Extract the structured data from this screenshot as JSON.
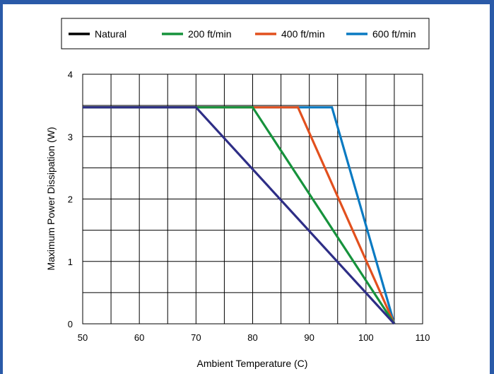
{
  "colors": {
    "frame": "#2a5aa8",
    "frame_dark": "#1d4489",
    "grid": "#000000",
    "background": "#ffffff"
  },
  "chart_data": {
    "type": "line",
    "xlabel": "Ambient Temperature (C)",
    "ylabel": "Maximum Power Dissipation (W)",
    "xlim": [
      50,
      110
    ],
    "ylim": [
      0,
      4
    ],
    "x_ticks": [
      50,
      60,
      70,
      80,
      90,
      100,
      110
    ],
    "y_ticks": [
      0,
      1,
      2,
      3,
      4
    ],
    "x_gridlines_every": 5,
    "y_gridlines_every": 0.5,
    "grid": true,
    "legend_position": "top",
    "series": [
      {
        "name": "Natural",
        "color": "#2e2e86",
        "points": [
          [
            50,
            3.47
          ],
          [
            70,
            3.47
          ],
          [
            105,
            0
          ]
        ]
      },
      {
        "name": "200 ft/min",
        "color": "#16923c",
        "points": [
          [
            50,
            3.47
          ],
          [
            80,
            3.47
          ],
          [
            105,
            0
          ]
        ]
      },
      {
        "name": "400 ft/min",
        "color": "#e2501e",
        "points": [
          [
            50,
            3.47
          ],
          [
            88,
            3.47
          ],
          [
            105,
            0
          ]
        ]
      },
      {
        "name": "600 ft/min",
        "color": "#0a7ac2",
        "points": [
          [
            50,
            3.47
          ],
          [
            94,
            3.47
          ],
          [
            105,
            0
          ]
        ]
      }
    ]
  }
}
